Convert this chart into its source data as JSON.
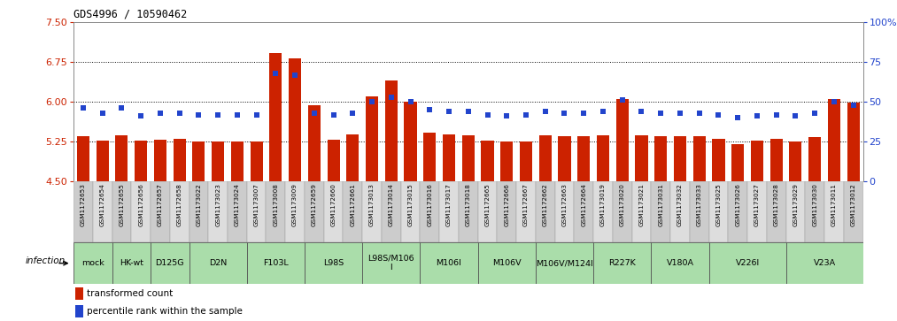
{
  "title": "GDS4996 / 10590462",
  "samples": [
    "GSM1172653",
    "GSM1172654",
    "GSM1172655",
    "GSM1172656",
    "GSM1172657",
    "GSM1172658",
    "GSM1173022",
    "GSM1173023",
    "GSM1173024",
    "GSM1173007",
    "GSM1173008",
    "GSM1173009",
    "GSM1172659",
    "GSM1172660",
    "GSM1172661",
    "GSM1173013",
    "GSM1173014",
    "GSM1173015",
    "GSM1173016",
    "GSM1173017",
    "GSM1173018",
    "GSM1172665",
    "GSM1172666",
    "GSM1172667",
    "GSM1172662",
    "GSM1172663",
    "GSM1172664",
    "GSM1173019",
    "GSM1173020",
    "GSM1173021",
    "GSM1173031",
    "GSM1173032",
    "GSM1173033",
    "GSM1173025",
    "GSM1173026",
    "GSM1173027",
    "GSM1173028",
    "GSM1173029",
    "GSM1173030",
    "GSM1173011",
    "GSM1173012"
  ],
  "bar_values": [
    5.35,
    5.27,
    5.37,
    5.27,
    5.28,
    5.3,
    5.25,
    5.26,
    5.25,
    5.25,
    6.93,
    6.82,
    5.93,
    5.29,
    5.38,
    6.1,
    6.41,
    6.01,
    5.42,
    5.38,
    5.37,
    5.27,
    5.25,
    5.26,
    5.37,
    5.35,
    5.35,
    5.37,
    6.05,
    5.37,
    5.35,
    5.35,
    5.36,
    5.3,
    5.21,
    5.27,
    5.31,
    5.26,
    5.34,
    6.06,
    5.99
  ],
  "percentile_values": [
    46,
    43,
    46,
    41,
    43,
    43,
    42,
    42,
    42,
    42,
    68,
    67,
    43,
    42,
    43,
    50,
    53,
    50,
    45,
    44,
    44,
    42,
    41,
    42,
    44,
    43,
    43,
    44,
    51,
    44,
    43,
    43,
    43,
    42,
    40,
    41,
    42,
    41,
    43,
    50,
    48
  ],
  "groups": [
    {
      "label": "mock",
      "start": 0,
      "end": 2
    },
    {
      "label": "HK-wt",
      "start": 2,
      "end": 4
    },
    {
      "label": "D125G",
      "start": 4,
      "end": 6
    },
    {
      "label": "D2N",
      "start": 6,
      "end": 9
    },
    {
      "label": "F103L",
      "start": 9,
      "end": 12
    },
    {
      "label": "L98S",
      "start": 12,
      "end": 15
    },
    {
      "label": "L98S/M106\nI",
      "start": 15,
      "end": 18
    },
    {
      "label": "M106I",
      "start": 18,
      "end": 21
    },
    {
      "label": "M106V",
      "start": 21,
      "end": 24
    },
    {
      "label": "M106V/M124I",
      "start": 24,
      "end": 27
    },
    {
      "label": "R227K",
      "start": 27,
      "end": 30
    },
    {
      "label": "V180A",
      "start": 30,
      "end": 33
    },
    {
      "label": "V226I",
      "start": 33,
      "end": 37
    },
    {
      "label": "V23A",
      "start": 37,
      "end": 41
    }
  ],
  "ylim_left": [
    4.5,
    7.5
  ],
  "yticks_left": [
    4.5,
    5.25,
    6.0,
    6.75,
    7.5
  ],
  "ylim_right": [
    0,
    100
  ],
  "yticks_right": [
    0,
    25,
    50,
    75,
    100
  ],
  "bar_color": "#cc2200",
  "dot_color": "#2244cc",
  "left_axis_color": "#cc2200",
  "right_axis_color": "#2244cc",
  "group_color": "#aaddaa",
  "infection_label": "infection",
  "legend_bar": "transformed count",
  "legend_dot": "percentile rank within the sample",
  "grid_yticks": [
    5.25,
    6.0,
    6.75
  ],
  "xtick_colors": [
    "#cccccc",
    "#dddddd"
  ]
}
